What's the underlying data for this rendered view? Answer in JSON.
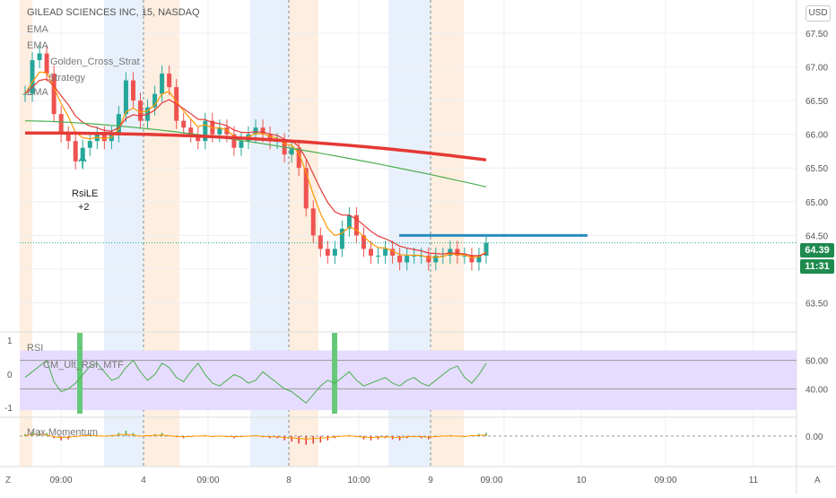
{
  "header": {
    "title": "GILEAD SCIENCES INC, 15, NASDAQ",
    "currency_button": "USD",
    "left_corner": "Z",
    "right_corner": "A"
  },
  "price_pane": {
    "legend": [
      "EMA",
      "EMA",
      "Golden_Cross_Strat",
      "Strategy",
      "EMA"
    ],
    "y_ticks": [
      "67.50",
      "67.00",
      "66.50",
      "66.00",
      "65.50",
      "65.00",
      "64.50",
      "64.00",
      "63.50"
    ],
    "last_price": "64.39",
    "countdown": "11:31",
    "signal_label": "RsiLE",
    "signal_qty": "+2",
    "colors": {
      "ema_slow": "#e53935",
      "ema_mid": "#4caf50",
      "ema_fast": "#ff9800",
      "price_line": "#2a8cbf",
      "up": "#26a69a",
      "down": "#ef5350",
      "tag": "#1e8a4e"
    }
  },
  "rsi_pane": {
    "legend": [
      "RSI",
      "CM_Ult_RSI_MTF"
    ],
    "left_ticks": [
      "1",
      "0",
      "-1"
    ],
    "right_ticks": [
      "60.00",
      "40.00"
    ],
    "colors": {
      "line": "#4caf50",
      "band": "#e6dcff"
    }
  },
  "momentum_pane": {
    "legend": "Max Momentum",
    "right_ticks": [
      "0.00"
    ],
    "colors": {
      "pos": "#4caf50",
      "neg": "#e53935",
      "line": "#ff9800"
    }
  },
  "time_axis": {
    "labels": [
      "09:00",
      "4",
      "09:00",
      "8",
      "10:00",
      "9",
      "09:00",
      "10",
      "09:00",
      "11"
    ]
  },
  "chart_data": {
    "type": "candlestick",
    "symbol": "GILEAD SCIENCES INC",
    "interval": "15",
    "exchange": "NASDAQ",
    "ylim": [
      63.2,
      67.7
    ],
    "close_series": [
      66.6,
      67.1,
      67.2,
      66.9,
      66.3,
      66.0,
      65.9,
      65.6,
      65.8,
      65.9,
      66.0,
      65.9,
      66.0,
      66.3,
      66.8,
      66.5,
      66.2,
      66.4,
      66.6,
      66.9,
      66.7,
      66.2,
      66.1,
      66.0,
      65.9,
      66.2,
      66.0,
      66.1,
      66.0,
      65.8,
      65.9,
      66.0,
      66.1,
      66.0,
      65.9,
      65.9,
      65.7,
      65.8,
      65.5,
      64.9,
      64.5,
      64.3,
      64.2,
      64.3,
      64.6,
      64.8,
      64.5,
      64.3,
      64.2,
      64.2,
      64.3,
      64.2,
      64.1,
      64.2,
      64.2,
      64.2,
      64.1,
      64.2,
      64.2,
      64.3,
      64.2,
      64.2,
      64.1,
      64.2,
      64.39
    ],
    "ema_slow_end": 65.62,
    "ema_mid_end": 65.22,
    "last_price": 64.39,
    "signal": {
      "label": "RsiLE",
      "qty": "+2",
      "price": 65.6
    },
    "rsi_ylim": [
      20,
      80
    ],
    "rsi_bands": [
      40,
      60
    ],
    "rsi_series": [
      48,
      52,
      56,
      60,
      45,
      38,
      40,
      44,
      50,
      56,
      58,
      52,
      46,
      48,
      55,
      60,
      52,
      46,
      50,
      58,
      55,
      48,
      45,
      52,
      58,
      50,
      44,
      42,
      46,
      50,
      48,
      44,
      46,
      52,
      48,
      44,
      40,
      38,
      34,
      30,
      36,
      42,
      46,
      44,
      48,
      52,
      46,
      42,
      44,
      46,
      48,
      44,
      42,
      46,
      48,
      44,
      42,
      46,
      50,
      54,
      56,
      48,
      44,
      50,
      58
    ],
    "momentum_ylim": [
      -1,
      1
    ],
    "momentum_series": [
      0.2,
      0.4,
      0.5,
      0.3,
      -0.2,
      -0.4,
      -0.3,
      -0.1,
      0.1,
      0.2,
      0.1,
      0.0,
      0.1,
      0.3,
      0.5,
      0.3,
      0.0,
      0.1,
      0.2,
      0.3,
      0.1,
      -0.1,
      -0.2,
      -0.1,
      0.0,
      0.1,
      -0.1,
      0.0,
      -0.1,
      -0.2,
      -0.1,
      0.0,
      0.1,
      -0.1,
      -0.2,
      -0.2,
      -0.4,
      -0.5,
      -0.7,
      -0.8,
      -0.7,
      -0.6,
      -0.4,
      -0.2,
      0.0,
      0.1,
      -0.1,
      -0.3,
      -0.4,
      -0.3,
      -0.2,
      -0.3,
      -0.4,
      -0.2,
      -0.1,
      -0.2,
      -0.3,
      -0.1,
      0.0,
      0.1,
      0.0,
      -0.1,
      0.1,
      0.2,
      0.3
    ]
  }
}
